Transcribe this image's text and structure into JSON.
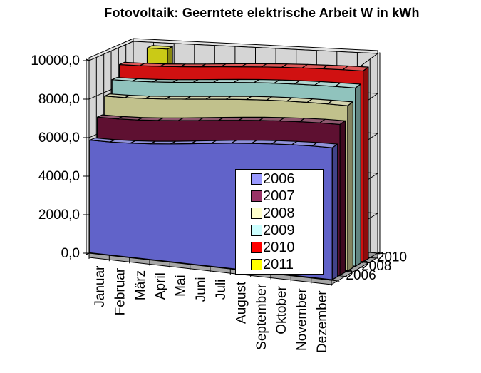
{
  "title": "Fotovoltaik: Geerntete elektrische Arbeit W in kWh",
  "chart_data": {
    "type": "area",
    "projection": "3d",
    "title": "Fotovoltaik: Geerntete elektrische Arbeit W in kWh",
    "categories": [
      "Januar",
      "Februar",
      "März",
      "April",
      "Mai",
      "Juni",
      "Juli",
      "August",
      "September",
      "Oktober",
      "November",
      "Dezember"
    ],
    "series": [
      {
        "name": "2006",
        "legend_color": "#9999FF",
        "face_color": "#6163C9",
        "values": [
          5850,
          5890,
          5960,
          6060,
          6180,
          6310,
          6440,
          6560,
          6660,
          6740,
          6800,
          6850
        ]
      },
      {
        "name": "2007",
        "legend_color": "#993366",
        "face_color": "#5E1031",
        "values": [
          6880,
          6915,
          6980,
          7070,
          7180,
          7295,
          7410,
          7515,
          7605,
          7680,
          7735,
          7775
        ]
      },
      {
        "name": "2008",
        "legend_color": "#FFFFCC",
        "face_color": "#C1C18C",
        "values": [
          7805,
          7840,
          7900,
          7985,
          8080,
          8175,
          8265,
          8340,
          8395,
          8430,
          8450,
          8460
        ]
      },
      {
        "name": "2009",
        "legend_color": "#CCFFFF",
        "face_color": "#90C3BD",
        "values": [
          8490,
          8520,
          8575,
          8650,
          8735,
          8820,
          8900,
          8965,
          9015,
          9050,
          9070,
          9080
        ]
      },
      {
        "name": "2010",
        "legend_color": "#FF0000",
        "face_color": "#D01111",
        "values": [
          9110,
          9140,
          9190,
          9255,
          9330,
          9405,
          9475,
          9535,
          9580,
          9615,
          9640,
          9660
        ]
      },
      {
        "name": "2011",
        "legend_color": "#FFFF00",
        "face_color": "#CACA16",
        "values": [
          null,
          9870,
          null,
          null,
          null,
          null,
          null,
          null,
          null,
          null,
          null,
          null
        ]
      }
    ],
    "value_axis": {
      "min": 0,
      "max": 10000,
      "step": 2000,
      "tick_labels": [
        "0,0",
        "2000,0",
        "4000,0",
        "6000,0",
        "8000,0",
        "10000,0"
      ],
      "gridlines": true
    },
    "depth_axis": {
      "labels": [
        "2006",
        "2008",
        "2010"
      ]
    },
    "legend_position": "overlay-center",
    "legend_entries": [
      "2006",
      "2007",
      "2008",
      "2009",
      "2010",
      "2011"
    ]
  }
}
